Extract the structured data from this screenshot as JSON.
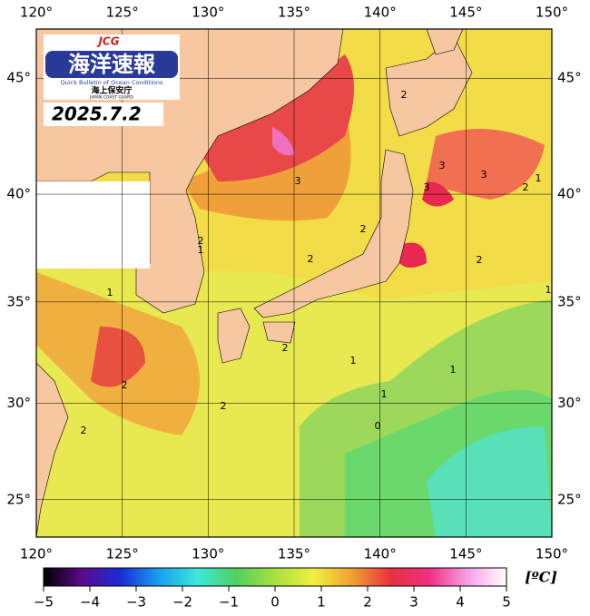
{
  "logo": {
    "badge": "JCG",
    "title": "海洋速報",
    "subtitle": "Quick Bulletin of Ocean Conditions",
    "agency": "海上保安庁",
    "agency_en": "JAPAN COAST GUARD"
  },
  "date": "2025.7.2",
  "map": {
    "lonlim": [
      120,
      150
    ],
    "latlim": [
      23,
      47
    ],
    "lon_ticks": [
      {
        "value": 120,
        "label": "120°"
      },
      {
        "value": 125,
        "label": "125°"
      },
      {
        "value": 130,
        "label": "130°"
      },
      {
        "value": 135,
        "label": "135°"
      },
      {
        "value": 140,
        "label": "140°"
      },
      {
        "value": 145,
        "label": "145°"
      },
      {
        "value": 150,
        "label": "150°"
      }
    ],
    "lat_ticks": [
      {
        "value": 25,
        "label": "25°"
      },
      {
        "value": 30,
        "label": "30°"
      },
      {
        "value": 35,
        "label": "35°"
      },
      {
        "value": 40,
        "label": "40°"
      },
      {
        "value": 45,
        "label": "45°"
      }
    ],
    "contour_labels": [
      1,
      2,
      1,
      3,
      2,
      2,
      2,
      3,
      3,
      3,
      2,
      1,
      2,
      1,
      2,
      1,
      1,
      1,
      0,
      2,
      2,
      2
    ]
  },
  "colorbar": {
    "lim": [
      -5,
      5
    ],
    "unit": "[ºC]",
    "colors": [
      "#000000",
      "#5a0a8c",
      "#1a2cd8",
      "#1aa0f0",
      "#3ce8d8",
      "#50d060",
      "#a8e040",
      "#f0f040",
      "#f0a030",
      "#e83040",
      "#f03080",
      "#f8a0e8",
      "#ffffff"
    ],
    "ticks": [
      {
        "value": -5,
        "label": "−5"
      },
      {
        "value": -4,
        "label": "−4"
      },
      {
        "value": -3,
        "label": "−3"
      },
      {
        "value": -2,
        "label": "−2"
      },
      {
        "value": -1,
        "label": "−1"
      },
      0,
      1,
      2,
      3,
      4,
      5
    ]
  }
}
